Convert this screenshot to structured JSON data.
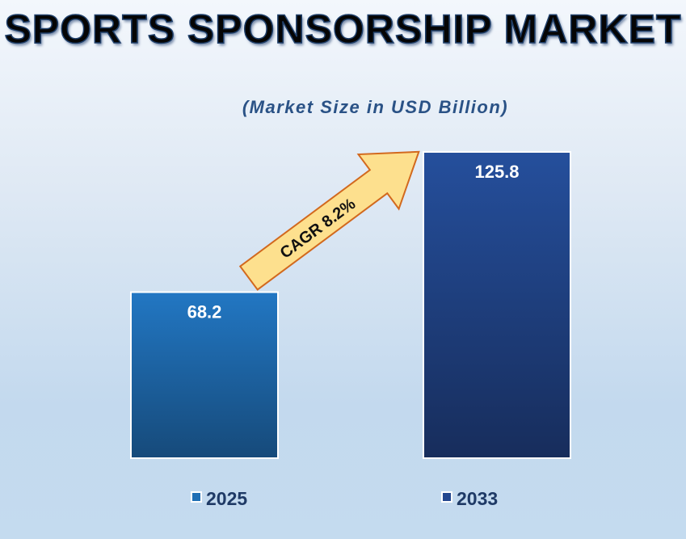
{
  "chart_data": {
    "type": "bar",
    "title": "SPORTS SPONSORSHIP MARKET",
    "subtitle": "(Market Size in USD Billion)",
    "categories": [
      "2025",
      "2033"
    ],
    "values": [
      68.2,
      125.8
    ],
    "data_labels": [
      "68.2",
      "125.8"
    ],
    "colors": [
      "#1f6fb5",
      "#23478f"
    ],
    "annotation": "CAGR 8.2%",
    "legend": [
      "2025",
      "2033"
    ],
    "legend_placement": "bottom",
    "grid": false
  }
}
